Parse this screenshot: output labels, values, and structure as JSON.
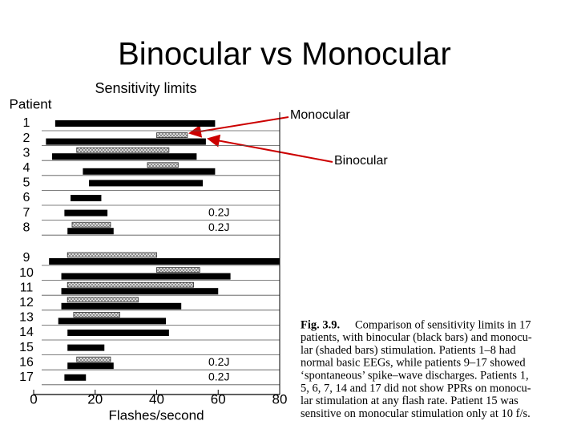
{
  "chart_data": {
    "type": "range-bar",
    "page_title": "Binocular vs Monocular",
    "title": "Sensitivity limits",
    "category_label": "Patient",
    "categories": [
      "1",
      "2",
      "3",
      "4",
      "5",
      "6",
      "7",
      "8",
      "9",
      "10",
      "11",
      "12",
      "13",
      "14",
      "15",
      "16",
      "17"
    ],
    "series": [
      {
        "name": "Binocular",
        "color": "#000000",
        "starts": [
          7,
          4,
          6,
          16,
          18,
          12,
          10,
          11,
          5,
          9,
          9,
          9,
          8,
          11,
          11,
          11,
          10
        ],
        "ends": [
          59,
          56,
          53,
          59,
          55,
          22,
          24,
          26,
          80,
          64,
          60,
          48,
          43,
          44,
          23,
          26,
          17
        ]
      },
      {
        "name": "Monocular",
        "color": "#b0b0b0",
        "starts": [
          null,
          40,
          14,
          37,
          null,
          null,
          null,
          12.5,
          11,
          40,
          11,
          11,
          13,
          null,
          null,
          14,
          null
        ],
        "ends": [
          null,
          50,
          44,
          47,
          null,
          null,
          null,
          25,
          40,
          54,
          52,
          34,
          28,
          null,
          null,
          25,
          null
        ]
      }
    ],
    "row_labels": [
      null,
      null,
      null,
      null,
      null,
      null,
      "0.2J",
      "0.2J",
      null,
      null,
      null,
      null,
      null,
      null,
      null,
      "0.2J",
      "0.2J"
    ],
    "xlabel": "Flashes/second",
    "xlim": [
      0,
      80
    ],
    "xticks": [
      0,
      20,
      40,
      60,
      80
    ]
  },
  "caption": {
    "label": "Fig. 3.9.",
    "lines": [
      "Comparison of sensitivity limits in 17",
      "patients, with binocular (black bars) and monocu-",
      "lar (shaded bars) stimulation. Patients 1–8 had",
      "normal basic EEGs, while patients 9–17 showed",
      "‘spontaneous’ spike–wave discharges. Patients 1,",
      "5, 6, 7, 14 and 17 did not show PPRs on monocu-",
      "lar stimulation at any flash rate. Patient 15 was",
      "sensitive on monocular stimulation only at 10 f/s."
    ]
  }
}
